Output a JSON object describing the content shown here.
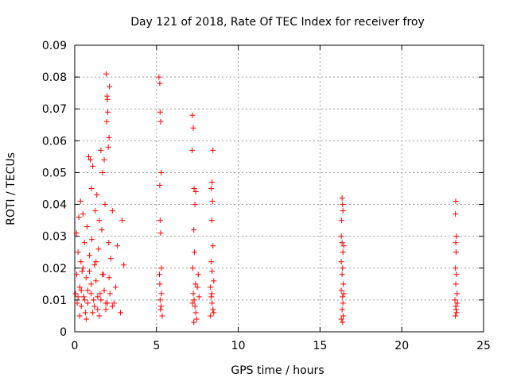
{
  "chart_data": {
    "type": "scatter",
    "title": "Day 121 of 2018, Rate Of TEC Index for receiver froy",
    "xlabel": "GPS time / hours",
    "ylabel": "ROTI / TECUs",
    "xlim": [
      0,
      25
    ],
    "ylim": [
      0,
      0.09
    ],
    "xticks": [
      0,
      5,
      10,
      15,
      20,
      25
    ],
    "xtick_labels": [
      "0",
      "5",
      "10",
      "15",
      "20",
      "25"
    ],
    "yticks": [
      0,
      0.01,
      0.02,
      0.03,
      0.04,
      0.05,
      0.06,
      0.07,
      0.08,
      0.09
    ],
    "ytick_labels": [
      "0",
      "0.01",
      "0.02",
      "0.03",
      "0.04",
      "0.05",
      "0.06",
      "0.07",
      "0.08",
      "0.09"
    ],
    "grid": true,
    "marker": "plus",
    "color": "#ff0000",
    "series": [
      {
        "name": "",
        "points": [
          [
            0.05,
            0.012
          ],
          [
            0.1,
            0.031
          ],
          [
            0.12,
            0.018
          ],
          [
            0.15,
            0.009
          ],
          [
            0.2,
            0.025
          ],
          [
            0.25,
            0.036
          ],
          [
            0.3,
            0.014
          ],
          [
            0.35,
            0.041
          ],
          [
            0.38,
            0.022
          ],
          [
            0.4,
            0.008
          ],
          [
            0.45,
            0.019
          ],
          [
            0.5,
            0.037
          ],
          [
            0.55,
            0.011
          ],
          [
            0.6,
            0.028
          ],
          [
            0.65,
            0.006
          ],
          [
            0.7,
            0.017
          ],
          [
            0.75,
            0.033
          ],
          [
            0.8,
            0.013
          ],
          [
            0.85,
            0.055
          ],
          [
            0.9,
            0.024
          ],
          [
            0.95,
            0.054
          ],
          [
            1.0,
            0.015
          ],
          [
            1.02,
            0.045
          ],
          [
            1.05,
            0.029
          ],
          [
            1.1,
            0.052
          ],
          [
            1.15,
            0.01
          ],
          [
            1.2,
            0.021
          ],
          [
            1.25,
            0.038
          ],
          [
            1.3,
            0.016
          ],
          [
            1.35,
            0.043
          ],
          [
            1.4,
            0.007
          ],
          [
            1.45,
            0.026
          ],
          [
            1.5,
            0.035
          ],
          [
            1.55,
            0.012
          ],
          [
            1.6,
            0.057
          ],
          [
            1.65,
            0.032
          ],
          [
            1.7,
            0.05
          ],
          [
            1.75,
            0.018
          ],
          [
            1.8,
            0.054
          ],
          [
            1.85,
            0.04
          ],
          [
            1.9,
            0.009
          ],
          [
            1.92,
            0.081
          ],
          [
            1.95,
            0.066
          ],
          [
            1.98,
            0.074
          ],
          [
            2.0,
            0.073
          ],
          [
            2.02,
            0.069
          ],
          [
            2.05,
            0.058
          ],
          [
            2.08,
            0.028
          ],
          [
            2.1,
            0.061
          ],
          [
            2.12,
            0.077
          ],
          [
            2.15,
            0.012
          ],
          [
            2.2,
            0.023
          ],
          [
            2.3,
            0.038
          ],
          [
            2.4,
            0.009
          ],
          [
            2.5,
            0.014
          ],
          [
            2.6,
            0.027
          ],
          [
            2.8,
            0.006
          ],
          [
            2.9,
            0.035
          ],
          [
            3.0,
            0.021
          ],
          [
            0.2,
            0.011
          ],
          [
            0.4,
            0.013
          ],
          [
            0.6,
            0.01
          ],
          [
            0.8,
            0.009
          ],
          [
            1.0,
            0.012
          ],
          [
            1.2,
            0.008
          ],
          [
            1.4,
            0.011
          ],
          [
            1.6,
            0.01
          ],
          [
            1.8,
            0.013
          ],
          [
            2.0,
            0.009
          ],
          [
            0.3,
            0.005
          ],
          [
            0.7,
            0.004
          ],
          [
            1.1,
            0.006
          ],
          [
            1.5,
            0.005
          ],
          [
            1.9,
            0.007
          ],
          [
            2.3,
            0.008
          ],
          [
            0.5,
            0.02
          ],
          [
            0.9,
            0.019
          ],
          [
            1.3,
            0.022
          ],
          [
            1.7,
            0.018
          ],
          [
            2.1,
            0.017
          ],
          [
            5.15,
            0.08
          ],
          [
            5.2,
            0.078
          ],
          [
            5.22,
            0.069
          ],
          [
            5.25,
            0.066
          ],
          [
            5.28,
            0.05
          ],
          [
            5.2,
            0.046
          ],
          [
            5.22,
            0.035
          ],
          [
            5.25,
            0.031
          ],
          [
            5.3,
            0.02
          ],
          [
            5.2,
            0.015
          ],
          [
            5.22,
            0.01
          ],
          [
            5.25,
            0.007
          ],
          [
            5.3,
            0.012
          ],
          [
            5.35,
            0.005
          ],
          [
            5.18,
            0.018
          ],
          [
            5.28,
            0.008
          ],
          [
            7.2,
            0.068
          ],
          [
            7.25,
            0.064
          ],
          [
            7.18,
            0.057
          ],
          [
            7.3,
            0.045
          ],
          [
            7.35,
            0.04
          ],
          [
            7.4,
            0.044
          ],
          [
            7.28,
            0.032
          ],
          [
            7.32,
            0.025
          ],
          [
            7.22,
            0.02
          ],
          [
            7.38,
            0.015
          ],
          [
            7.25,
            0.012
          ],
          [
            7.3,
            0.01
          ],
          [
            7.35,
            0.008
          ],
          [
            7.4,
            0.006
          ],
          [
            7.45,
            0.004
          ],
          [
            7.2,
            0.009
          ],
          [
            7.5,
            0.014
          ],
          [
            7.55,
            0.018
          ],
          [
            7.6,
            0.011
          ],
          [
            7.28,
            0.003
          ],
          [
            8.45,
            0.057
          ],
          [
            8.4,
            0.047
          ],
          [
            8.35,
            0.045
          ],
          [
            8.42,
            0.041
          ],
          [
            8.38,
            0.035
          ],
          [
            8.45,
            0.027
          ],
          [
            8.35,
            0.022
          ],
          [
            8.4,
            0.019
          ],
          [
            8.5,
            0.016
          ],
          [
            8.3,
            0.014
          ],
          [
            8.35,
            0.011
          ],
          [
            8.4,
            0.009
          ],
          [
            8.45,
            0.007
          ],
          [
            8.5,
            0.006
          ],
          [
            8.3,
            0.005
          ],
          [
            8.38,
            0.012
          ],
          [
            16.35,
            0.042
          ],
          [
            16.38,
            0.04
          ],
          [
            16.4,
            0.038
          ],
          [
            16.32,
            0.035
          ],
          [
            16.3,
            0.03
          ],
          [
            16.35,
            0.028
          ],
          [
            16.45,
            0.027
          ],
          [
            16.4,
            0.025
          ],
          [
            16.3,
            0.022
          ],
          [
            16.38,
            0.02
          ],
          [
            16.35,
            0.018
          ],
          [
            16.42,
            0.015
          ],
          [
            16.3,
            0.013
          ],
          [
            16.38,
            0.011
          ],
          [
            16.4,
            0.009
          ],
          [
            16.35,
            0.007
          ],
          [
            16.42,
            0.005
          ],
          [
            16.3,
            0.004
          ],
          [
            16.38,
            0.003
          ],
          [
            16.45,
            0.012
          ],
          [
            23.3,
            0.041
          ],
          [
            23.28,
            0.037
          ],
          [
            23.35,
            0.03
          ],
          [
            23.3,
            0.028
          ],
          [
            23.32,
            0.025
          ],
          [
            23.28,
            0.02
          ],
          [
            23.35,
            0.018
          ],
          [
            23.3,
            0.015
          ],
          [
            23.38,
            0.012
          ],
          [
            23.25,
            0.01
          ],
          [
            23.3,
            0.008
          ],
          [
            23.35,
            0.006
          ],
          [
            23.28,
            0.005
          ],
          [
            23.4,
            0.009
          ],
          [
            23.32,
            0.007
          ]
        ]
      }
    ]
  }
}
